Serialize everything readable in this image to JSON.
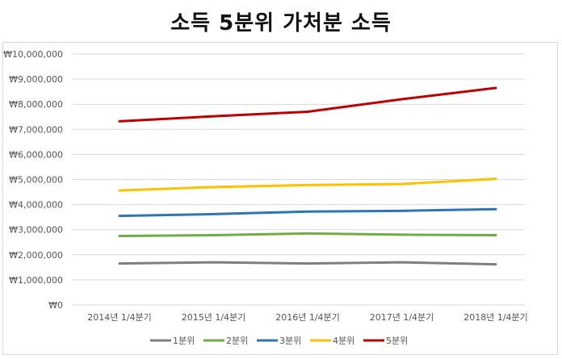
{
  "chart_data": {
    "type": "line",
    "title": "소득 5분위 가처분 소득",
    "xlabel": "",
    "ylabel": "",
    "categories": [
      "2014년 1/4분기",
      "2015년 1/4분기",
      "2016년 1/4분기",
      "2017년 1/4분기",
      "2018년 1/4분기"
    ],
    "ylim": [
      0,
      10000000
    ],
    "yticks": [
      0,
      1000000,
      2000000,
      3000000,
      4000000,
      5000000,
      6000000,
      7000000,
      8000000,
      9000000,
      10000000
    ],
    "ytick_labels": [
      "₩0",
      "₩1,000,000",
      "₩2,000,000",
      "₩3,000,000",
      "₩4,000,000",
      "₩5,000,000",
      "₩6,000,000",
      "₩7,000,000",
      "₩8,000,000",
      "₩9,000,000",
      "₩10,000,000"
    ],
    "grid": true,
    "legend_position": "bottom",
    "series": [
      {
        "name": "1분위",
        "color": "#7f7f7f",
        "values": [
          1650000,
          1700000,
          1650000,
          1700000,
          1620000
        ]
      },
      {
        "name": "2분위",
        "color": "#70ad47",
        "values": [
          2750000,
          2780000,
          2850000,
          2800000,
          2780000
        ]
      },
      {
        "name": "3분위",
        "color": "#2e75b6",
        "values": [
          3550000,
          3620000,
          3720000,
          3750000,
          3820000
        ]
      },
      {
        "name": "4분위",
        "color": "#ffc000",
        "values": [
          4560000,
          4700000,
          4780000,
          4820000,
          5030000
        ]
      },
      {
        "name": "5분위",
        "color": "#c00000",
        "values": [
          7320000,
          7520000,
          7700000,
          8200000,
          8650000
        ]
      }
    ]
  }
}
